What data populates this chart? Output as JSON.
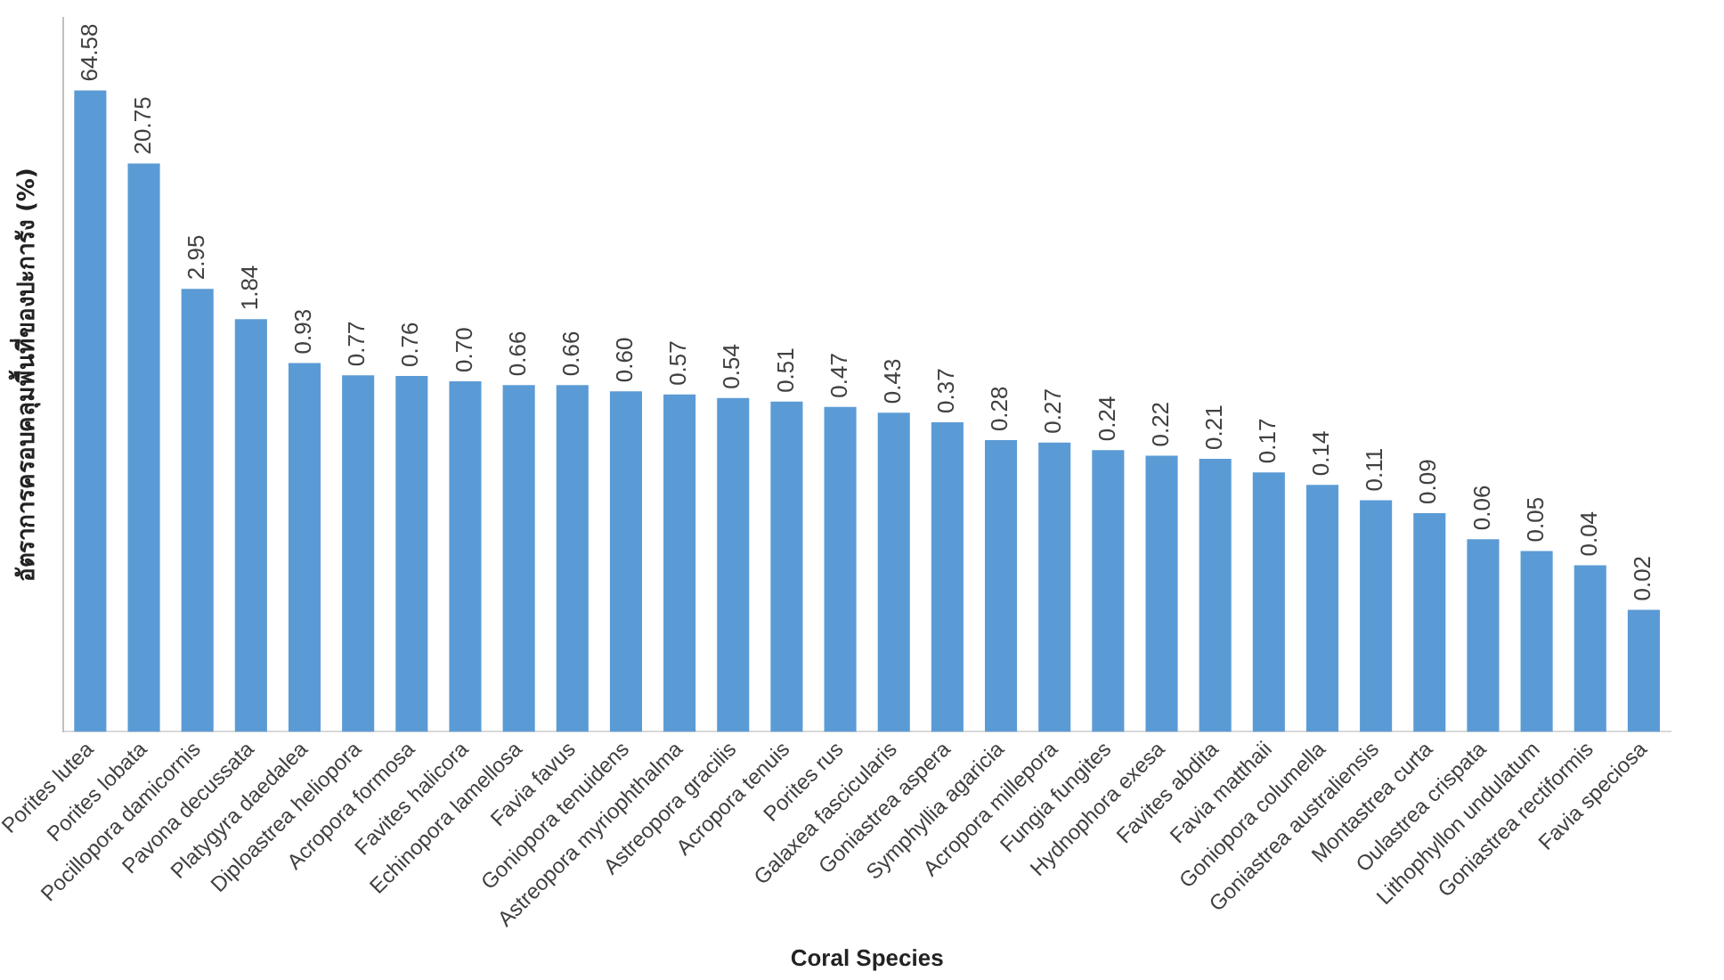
{
  "chart_data": {
    "type": "bar",
    "xlabel": "Coral Species",
    "ylabel": "อัตราการครอบคลุมพื้นที่ของปะการัง (%)",
    "categories": [
      "Porites lutea",
      "Porites lobata",
      "Pocillopora damicornis",
      "Pavona decussata",
      "Platygyra daedalea",
      "Diploastrea heliopora",
      "Acropora formosa",
      "Favites halicora",
      "Echinopora lamellosa",
      "Favia favus",
      "Goniopora tenuidens",
      "Astreopora myriophthalma",
      "Astreopora gracilis",
      "Acropora tenuis",
      "Porites rus",
      "Galaxea fascicularis",
      "Goniastrea aspera",
      "Symphyllia agaricia",
      "Acropora millepora",
      "Fungia fungites",
      "Hydnophora exesa",
      "Favites abdita",
      "Favia matthaii",
      "Goniopora columella",
      "Goniastrea australiensis",
      "Montastrea curta",
      "Oulastrea crispata",
      "Lithophyllon undulatum",
      "Goniastrea rectiformis",
      "Favia speciosa"
    ],
    "values": [
      64.58,
      20.75,
      2.95,
      1.84,
      0.93,
      0.77,
      0.76,
      0.7,
      0.66,
      0.66,
      0.6,
      0.57,
      0.54,
      0.51,
      0.47,
      0.43,
      0.37,
      0.28,
      0.27,
      0.24,
      0.22,
      0.21,
      0.17,
      0.14,
      0.11,
      0.09,
      0.06,
      0.05,
      0.04,
      0.02
    ],
    "value_labels": [
      "64.58",
      "20.75",
      "2.95",
      "1.84",
      "0.93",
      "0.77",
      "0.76",
      "0.70",
      "0.66",
      "0.66",
      "0.60",
      "0.57",
      "0.54",
      "0.51",
      "0.47",
      "0.43",
      "0.37",
      "0.28",
      "0.27",
      "0.24",
      "0.22",
      "0.21",
      "0.17",
      "0.14",
      "0.11",
      "0.09",
      "0.06",
      "0.05",
      "0.04",
      "0.02"
    ],
    "color": "#5b9bd5",
    "log": true,
    "ylim": [
      0.003,
      200
    ],
    "tick_labels": "x",
    "grid": false,
    "legend": false
  }
}
